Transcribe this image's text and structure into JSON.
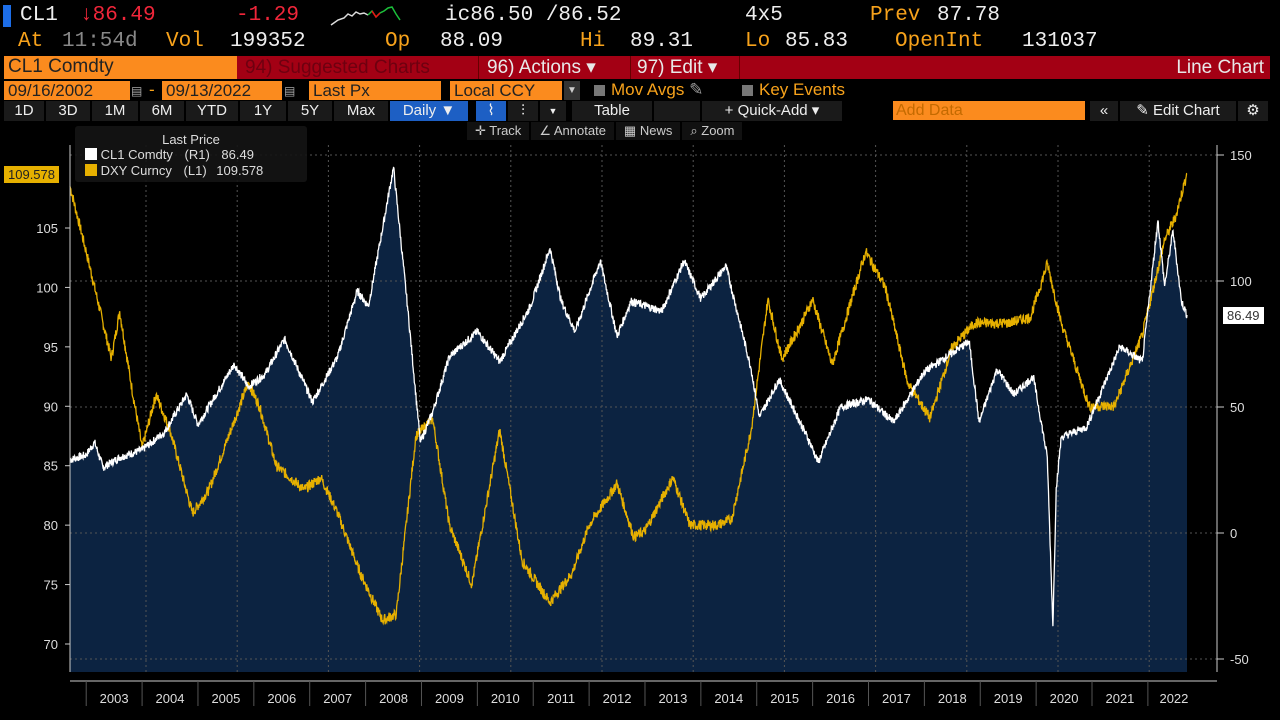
{
  "header": {
    "ticker": "CL1",
    "last": "↓86.49",
    "change": "-1.29",
    "bid_ask": "ic86.50 /86.52",
    "size": "4x5",
    "prev_label": "Prev",
    "prev": "87.78",
    "at_label": "At",
    "time": "11:54d",
    "vol_label": "Vol",
    "vol": "199352",
    "open_label": "Op",
    "open": "88.09",
    "hi_label": "Hi",
    "hi": "89.31",
    "lo_label": "Lo",
    "lo": "85.83",
    "oi_label": "OpenInt",
    "oi": "131037"
  },
  "toolbar": {
    "security": "CL1 Comdty",
    "suggested": "94) Suggested Charts",
    "actions": "96) Actions ▾",
    "edit": "97) Edit ▾",
    "chart_type": "Line Chart",
    "start_date": "09/16/2002",
    "end_date": "09/13/2022",
    "dash": "-",
    "field": "Last Px",
    "currency": "Local CCY",
    "mov_avgs": "Mov Avgs",
    "key_events": "Key Events",
    "periods": [
      "1D",
      "3D",
      "1M",
      "6M",
      "YTD",
      "1Y",
      "5Y",
      "Max"
    ],
    "frequency": "Daily ▼",
    "table": "Table",
    "quick_add": "+ Quick-Add ▾",
    "add_data_placeholder": "Add Data",
    "collapse": "«",
    "edit_chart": "Edit Chart",
    "settings": "⚙",
    "tools": [
      "Track",
      "Annotate",
      "News",
      "Zoom"
    ]
  },
  "chart_data": {
    "type": "line",
    "title": "Last Price",
    "legend": [
      {
        "name": "CL1 Comdty",
        "axis": "(R1)",
        "last": "86.49",
        "color": "#ffffff"
      },
      {
        "name": "DXY Curncy",
        "axis": "(L1)",
        "last": "109.578",
        "color": "#e6b000"
      }
    ],
    "left_axis": {
      "ticks": [
        "105",
        "100",
        "95",
        "90",
        "85",
        "80",
        "75",
        "70"
      ],
      "range": [
        67.6,
        111.5
      ],
      "last_label": "109.578"
    },
    "right_axis": {
      "ticks": [
        "150",
        "100",
        "50",
        "0",
        "-50"
      ],
      "range": [
        -55,
        152
      ],
      "last_label": "86.49"
    },
    "x_labels": [
      "2003",
      "2004",
      "2005",
      "2006",
      "2007",
      "2008",
      "2009",
      "2010",
      "2011",
      "2012",
      "2013",
      "2014",
      "2015",
      "2016",
      "2017",
      "2018",
      "2019",
      "2020",
      "2021",
      "2022"
    ],
    "x_range": [
      2002.71,
      2022.7
    ],
    "series": [
      {
        "name": "CL1 Comdty",
        "axis": "right",
        "points": [
          [
            2002.71,
            29
          ],
          [
            2003.0,
            31
          ],
          [
            2003.15,
            36
          ],
          [
            2003.3,
            26
          ],
          [
            2003.6,
            30
          ],
          [
            2004.0,
            33
          ],
          [
            2004.4,
            40
          ],
          [
            2004.8,
            55
          ],
          [
            2005.0,
            43
          ],
          [
            2005.65,
            67
          ],
          [
            2005.9,
            58
          ],
          [
            2006.2,
            63
          ],
          [
            2006.55,
            77
          ],
          [
            2007.05,
            52
          ],
          [
            2007.5,
            70
          ],
          [
            2007.85,
            96
          ],
          [
            2008.05,
            90
          ],
          [
            2008.5,
            145
          ],
          [
            2008.75,
            90
          ],
          [
            2008.98,
            36
          ],
          [
            2009.2,
            48
          ],
          [
            2009.5,
            70
          ],
          [
            2010.0,
            80
          ],
          [
            2010.4,
            68
          ],
          [
            2010.95,
            90
          ],
          [
            2011.3,
            113
          ],
          [
            2011.5,
            92
          ],
          [
            2011.75,
            80
          ],
          [
            2012.2,
            108
          ],
          [
            2012.5,
            78
          ],
          [
            2012.75,
            92
          ],
          [
            2013.3,
            88
          ],
          [
            2013.7,
            108
          ],
          [
            2014.0,
            93
          ],
          [
            2014.45,
            106
          ],
          [
            2014.9,
            65
          ],
          [
            2015.05,
            46
          ],
          [
            2015.4,
            61
          ],
          [
            2015.95,
            36
          ],
          [
            2016.1,
            28
          ],
          [
            2016.5,
            50
          ],
          [
            2017.0,
            53
          ],
          [
            2017.45,
            44
          ],
          [
            2018.0,
            64
          ],
          [
            2018.8,
            76
          ],
          [
            2018.98,
            44
          ],
          [
            2019.3,
            65
          ],
          [
            2019.6,
            55
          ],
          [
            2019.95,
            62
          ],
          [
            2020.2,
            30
          ],
          [
            2020.3,
            -37
          ],
          [
            2020.36,
            18
          ],
          [
            2020.45,
            38
          ],
          [
            2020.9,
            42
          ],
          [
            2021.5,
            74
          ],
          [
            2021.9,
            68
          ],
          [
            2022.18,
            124
          ],
          [
            2022.3,
            98
          ],
          [
            2022.45,
            120
          ],
          [
            2022.6,
            92
          ],
          [
            2022.7,
            86.49
          ]
        ]
      },
      {
        "name": "DXY Curncy",
        "axis": "left",
        "points": [
          [
            2002.71,
            108.5
          ],
          [
            2003.0,
            103
          ],
          [
            2003.3,
            97
          ],
          [
            2003.45,
            94
          ],
          [
            2003.6,
            98
          ],
          [
            2003.8,
            92
          ],
          [
            2004.0,
            86.5
          ],
          [
            2004.25,
            91
          ],
          [
            2004.5,
            88
          ],
          [
            2004.9,
            81
          ],
          [
            2005.2,
            83
          ],
          [
            2005.9,
            92
          ],
          [
            2006.1,
            90
          ],
          [
            2006.4,
            85
          ],
          [
            2006.9,
            83
          ],
          [
            2007.2,
            84
          ],
          [
            2007.5,
            81
          ],
          [
            2007.9,
            76
          ],
          [
            2008.3,
            72
          ],
          [
            2008.55,
            72.5
          ],
          [
            2008.9,
            87.5
          ],
          [
            2009.2,
            89
          ],
          [
            2009.5,
            80
          ],
          [
            2009.9,
            75
          ],
          [
            2010.4,
            88
          ],
          [
            2010.8,
            77
          ],
          [
            2011.3,
            73.5
          ],
          [
            2011.7,
            76
          ],
          [
            2012.0,
            80
          ],
          [
            2012.5,
            83.5
          ],
          [
            2012.8,
            79
          ],
          [
            2013.0,
            79.5
          ],
          [
            2013.5,
            84
          ],
          [
            2013.8,
            80
          ],
          [
            2014.3,
            80
          ],
          [
            2014.55,
            80.5
          ],
          [
            2014.9,
            88
          ],
          [
            2015.2,
            99
          ],
          [
            2015.45,
            94
          ],
          [
            2015.8,
            97
          ],
          [
            2016.0,
            99
          ],
          [
            2016.35,
            93.5
          ],
          [
            2016.95,
            103
          ],
          [
            2017.3,
            100
          ],
          [
            2017.7,
            92
          ],
          [
            2018.1,
            89
          ],
          [
            2018.5,
            95
          ],
          [
            2018.9,
            97
          ],
          [
            2019.5,
            97
          ],
          [
            2019.9,
            97.5
          ],
          [
            2020.2,
            102
          ],
          [
            2020.45,
            97
          ],
          [
            2020.95,
            90
          ],
          [
            2021.4,
            90
          ],
          [
            2021.9,
            96
          ],
          [
            2022.3,
            104
          ],
          [
            2022.5,
            106
          ],
          [
            2022.7,
            109.6
          ]
        ]
      }
    ]
  }
}
